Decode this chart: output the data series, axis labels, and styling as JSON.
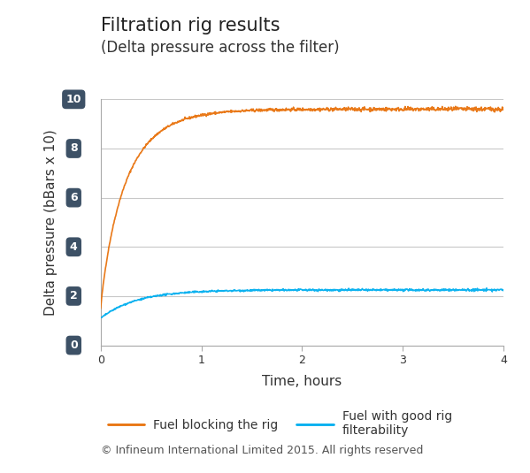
{
  "title_line1": "Filtration rig results",
  "title_line2": "(Delta pressure across the filter)",
  "xlabel": "Time, hours",
  "ylabel": "Delta pressure (bBars x 10)",
  "xlim": [
    0,
    4
  ],
  "ylim": [
    0,
    10
  ],
  "xticks": [
    0,
    1,
    2,
    3,
    4
  ],
  "yticks": [
    0,
    2,
    4,
    6,
    8,
    10
  ],
  "orange_color": "#E8720C",
  "blue_color": "#00AEEF",
  "tick_label_bg": "#3d5166",
  "tick_label_fg": "#ffffff",
  "background_color": "#ffffff",
  "grid_color": "#c8c8c8",
  "legend_label_orange": "Fuel blocking the rig",
  "legend_label_blue": "Fuel with good rig\nfilterability",
  "copyright_text": "© Infineum International Limited 2015. All rights reserved",
  "title_fontsize": 15,
  "subtitle_fontsize": 12,
  "axis_label_fontsize": 11,
  "tick_fontsize": 9,
  "legend_fontsize": 10,
  "copyright_fontsize": 9
}
